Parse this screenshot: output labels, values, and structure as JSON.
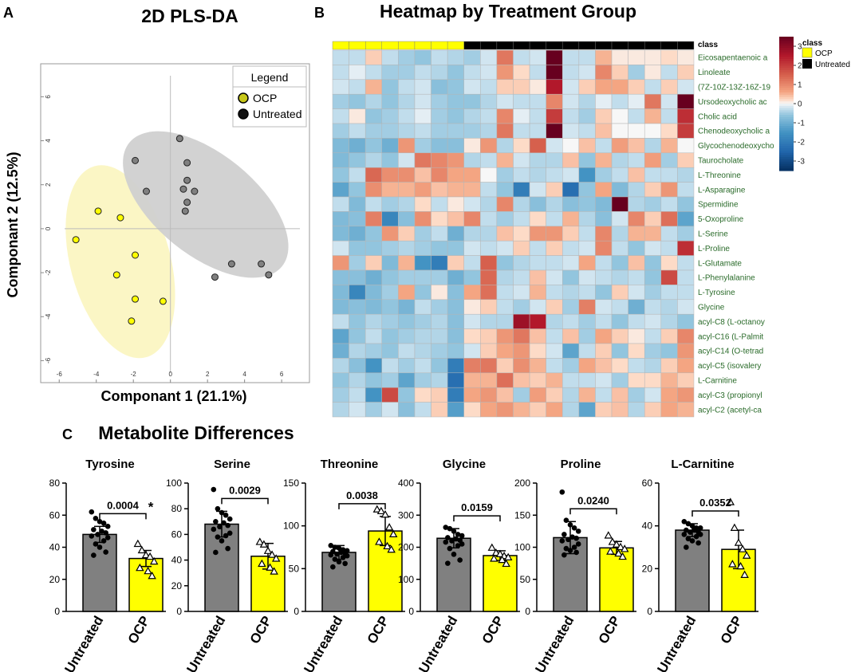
{
  "panel_labels": {
    "a": "A",
    "b": "B",
    "c": "C"
  },
  "colors": {
    "ocp": "#ffff00",
    "untreated": "#808080",
    "ellipse_ocp": "#fbf6c2",
    "ellipse_untreated": "#d0d0d0",
    "hm_low": "#053061",
    "hm_mid": "#f7f7f7",
    "hm_high": "#67001f"
  },
  "chart_data": [
    {
      "id": "pls",
      "type": "scatter",
      "title": "2D PLS-DA",
      "xlabel": "Componant 1 (21.1%)",
      "ylabel": "Componant 2 (12.5%)",
      "xlim": [
        -7,
        7.5
      ],
      "ylim": [
        -7,
        7.5
      ],
      "xticks": [
        -6,
        -4,
        -2,
        0,
        2,
        4,
        6
      ],
      "yticks": [
        -6,
        -4,
        -2,
        0,
        2,
        4,
        6
      ],
      "legend": {
        "title": "Legend",
        "position": "top-right",
        "entries": [
          "OCP",
          "Untreated"
        ]
      },
      "series": [
        {
          "name": "OCP",
          "color": "#ffff00",
          "points": [
            [
              -5.1,
              -0.5
            ],
            [
              -3.9,
              0.8
            ],
            [
              -2.7,
              0.5
            ],
            [
              -1.9,
              -1.2
            ],
            [
              -2.9,
              -2.1
            ],
            [
              -1.9,
              -3.2
            ],
            [
              -0.4,
              -3.3
            ],
            [
              -2.1,
              -4.2
            ]
          ]
        },
        {
          "name": "Untreated",
          "color": "#808080",
          "points": [
            [
              0.5,
              4.1
            ],
            [
              -1.9,
              3.1
            ],
            [
              -1.3,
              1.7
            ],
            [
              0.9,
              3
            ],
            [
              0.9,
              2.2
            ],
            [
              0.7,
              1.8
            ],
            [
              1.3,
              1.7
            ],
            [
              0.9,
              1.2
            ],
            [
              0.8,
              0.8
            ],
            [
              2.4,
              -2.2
            ],
            [
              3.3,
              -1.6
            ],
            [
              4.9,
              -1.6
            ],
            [
              5.3,
              -2.1
            ]
          ]
        }
      ],
      "ellipses": [
        {
          "group": "OCP",
          "center": [
            -2.7,
            -1.5
          ],
          "rx": 2.7,
          "ry": 4.5,
          "rotate_deg": -15
        },
        {
          "group": "Untreated",
          "center": [
            1.9,
            1.1
          ],
          "rx": 5.3,
          "ry": 2.3,
          "rotate_deg": 39
        }
      ]
    },
    {
      "id": "heatmap",
      "type": "heatmap",
      "title": "Heatmap by Treatment Group",
      "class_label": "class",
      "columns_class": [
        "OCP",
        "OCP",
        "OCP",
        "OCP",
        "OCP",
        "OCP",
        "OCP",
        "OCP",
        "Untreated",
        "Untreated",
        "Untreated",
        "Untreated",
        "Untreated",
        "Untreated",
        "Untreated",
        "Untreated",
        "Untreated",
        "Untreated",
        "Untreated",
        "Untreated",
        "Untreated",
        "Untreated"
      ],
      "rows": [
        "Eicosapentaenoic a",
        "Linoleate",
        "(7Z-10Z-13Z-16Z-19",
        "Ursodeoxycholic ac",
        "Cholic acid",
        "Chenodeoxycholic a",
        "Glycochenodeoxycho",
        "Taurocholate",
        "L-Threonine",
        "L-Asparagine",
        "Spermidine",
        "5-Oxoproline",
        "L-Serine",
        "L-Proline",
        "L-Glutamate",
        "L-Phenylalanine",
        "L-Tyrosine",
        "Glycine",
        "acyl-C8 (L-octanoy",
        "acyl-C16 (L-Palmit",
        "acyl-C14 (O-tetrad",
        "acyl-C5 (isovalery",
        "L-Carnitine",
        "acyl-C3 (propionyl",
        "acyl-C2 (acetyl-ca"
      ],
      "values": [
        [
          -0.3,
          -0.3,
          0.3,
          -0.3,
          -0.5,
          -0.6,
          -0.3,
          -0.4,
          -0.5,
          -0.2,
          1.2,
          -0.3,
          -0.2,
          3.5,
          -0.3,
          -0.3,
          0.5,
          0.1,
          0.1,
          0.1,
          0.2,
          0.1
        ],
        [
          -0.3,
          -0.1,
          -0.3,
          -0.5,
          -0.5,
          -0.3,
          -0.4,
          -0.6,
          -0.3,
          -0.2,
          0.8,
          0.2,
          -0.3,
          3.5,
          -0.3,
          -0.2,
          1,
          0.3,
          -0.5,
          0.1,
          -0.3,
          0.3
        ],
        [
          -0.2,
          -0.3,
          0.5,
          -0.6,
          -0.3,
          -0.2,
          -0.7,
          -0.6,
          -0.2,
          -0.3,
          0.3,
          0.3,
          0.1,
          2.5,
          -0.2,
          0.3,
          0.6,
          0.6,
          0.3,
          -0.3,
          0.3,
          -0.2
        ],
        [
          -0.5,
          -0.6,
          -0.4,
          -0.6,
          -0.4,
          -0.2,
          -0.5,
          -0.6,
          -0.6,
          -0.4,
          -0.2,
          -0.3,
          -0.3,
          1,
          -0.2,
          -0.4,
          -0.1,
          -0.3,
          -0.1,
          1.2,
          -0.2,
          3.5
        ],
        [
          -0.3,
          0.1,
          -0.6,
          -0.5,
          -0.3,
          -0.1,
          -0.5,
          -0.6,
          -0.4,
          -0.3,
          1,
          -0.1,
          -0.3,
          2,
          -0.3,
          -0.5,
          0.3,
          0,
          -0.3,
          0.5,
          -0.3,
          2.2
        ],
        [
          -0.5,
          -0.3,
          -0.5,
          -0.5,
          -0.4,
          -0.3,
          -0.5,
          -0.5,
          -0.5,
          -0.4,
          1.2,
          -0.3,
          -0.3,
          3.5,
          -0.2,
          -0.3,
          0.4,
          0,
          0,
          0,
          0.2,
          2
        ],
        [
          -0.8,
          -1,
          -0.6,
          -1,
          0.8,
          -0.5,
          -0.7,
          -0.7,
          0.1,
          0.8,
          -0.4,
          0.2,
          1.5,
          -0.2,
          0,
          0.4,
          -0.3,
          0.7,
          0.4,
          -0.4,
          0.5,
          0
        ],
        [
          -0.8,
          -0.6,
          -0.4,
          -0.6,
          -0.2,
          1.2,
          1,
          0.8,
          -0.4,
          -0.3,
          0.5,
          -0.2,
          -0.4,
          -0.4,
          0.4,
          -0.6,
          0.5,
          -0.4,
          -0.3,
          0.7,
          -0.5,
          0.3
        ],
        [
          -0.6,
          -0.3,
          1.4,
          0.9,
          0.9,
          0.4,
          1,
          0.6,
          0.6,
          0,
          -0.5,
          -0.3,
          -0.4,
          -0.3,
          -0.2,
          -1.5,
          -0.5,
          -0.3,
          0.4,
          -0.3,
          -0.3,
          -0.4
        ],
        [
          -1.2,
          -0.6,
          0.9,
          0.5,
          0.5,
          0.7,
          0.4,
          0.5,
          0.5,
          -0.3,
          -0.6,
          -2,
          -0.2,
          0.3,
          -2.3,
          -0.6,
          0.6,
          -0.8,
          -0.4,
          0.3,
          0.8,
          -0.3
        ],
        [
          -0.3,
          -0.8,
          -0.3,
          -0.5,
          -0.4,
          0.2,
          -0.3,
          0.1,
          -0.2,
          -0.4,
          1,
          -0.4,
          -0.7,
          -0.4,
          -0.7,
          -0.6,
          -0.8,
          3.5,
          -0.4,
          -0.5,
          -0.3,
          -0.6
        ],
        [
          -0.8,
          -0.7,
          1.1,
          -1.8,
          -0.7,
          0.9,
          0.2,
          0.4,
          1,
          -0.3,
          -0.5,
          -0.3,
          0.2,
          -0.3,
          0.5,
          -0.4,
          -0.7,
          -0.2,
          1,
          0.3,
          1.3,
          -1.2
        ],
        [
          -0.8,
          -1,
          -0.6,
          0.8,
          0.3,
          -0.5,
          -0.3,
          -1,
          -0.4,
          -0.4,
          0.4,
          0.2,
          0.8,
          0.8,
          0.3,
          -0.3,
          1,
          -0.4,
          0.5,
          0.5,
          -0.3,
          -0.5
        ],
        [
          -0.2,
          -0.6,
          -0.6,
          -0.5,
          -0.4,
          -0.5,
          -0.6,
          -0.6,
          -0.2,
          -0.3,
          -0.2,
          0.3,
          -0.3,
          0.3,
          -0.3,
          -0.2,
          1,
          -0.3,
          -0.6,
          -0.2,
          -0.3,
          2.2
        ],
        [
          0.8,
          -0.5,
          0.3,
          -0.8,
          0.5,
          -1.5,
          -2,
          0.3,
          -0.3,
          1.5,
          -0.6,
          -0.4,
          -0.3,
          -0.3,
          -0.2,
          0.6,
          -0.3,
          -0.6,
          0.4,
          -0.6,
          0.2,
          -0.3
        ],
        [
          -0.7,
          -0.7,
          -1,
          -0.6,
          -0.5,
          -0.5,
          -0.5,
          -1,
          -0.6,
          1.4,
          -0.4,
          -0.3,
          0.4,
          -0.2,
          -0.6,
          -0.2,
          -0.3,
          -0.4,
          -0.3,
          -0.6,
          1.8,
          -0.3
        ],
        [
          -0.8,
          -1.8,
          -0.8,
          -0.5,
          0.6,
          -0.6,
          0.1,
          -0.7,
          0.6,
          1.3,
          -0.3,
          -0.2,
          0.5,
          -0.3,
          -0.4,
          -0.3,
          -0.6,
          0.3,
          -0.2,
          -0.5,
          -0.3,
          -0.3
        ],
        [
          -0.8,
          -0.7,
          -0.8,
          -0.6,
          -0.9,
          -0.3,
          -0.5,
          -0.7,
          0.1,
          0.3,
          -0.3,
          -0.5,
          -0.2,
          0.3,
          -0.5,
          1.1,
          -0.2,
          -0.3,
          -1,
          -0.3,
          -0.4,
          -0.2
        ],
        [
          -0.3,
          -0.6,
          -0.4,
          -0.5,
          -0.6,
          -0.5,
          -0.4,
          -0.7,
          -0.2,
          -0.4,
          -0.4,
          2.8,
          2.5,
          -0.4,
          -0.3,
          -0.5,
          -0.3,
          -0.6,
          -0.3,
          -0.2,
          -0.4,
          -0.6
        ],
        [
          -1.2,
          -0.6,
          -0.3,
          -0.6,
          -0.5,
          -0.4,
          -0.4,
          -0.7,
          0.2,
          0.3,
          0.8,
          1.2,
          0.4,
          -0.3,
          0.4,
          -0.5,
          0.6,
          0.3,
          0.1,
          -0.3,
          0.3,
          1
        ],
        [
          -1,
          -0.4,
          -0.5,
          -0.6,
          -0.3,
          -0.4,
          -0.5,
          -0.6,
          -0.2,
          0.3,
          0.6,
          0.8,
          0.2,
          -0.2,
          -1.2,
          -0.3,
          0.3,
          -0.6,
          0.2,
          -0.5,
          -0.6,
          0.8
        ],
        [
          -0.4,
          -0.7,
          -1.5,
          -0.3,
          -0.5,
          -0.3,
          -0.6,
          -2,
          1.1,
          1.2,
          0.3,
          0.9,
          0.5,
          -0.3,
          -0.5,
          0.6,
          0.4,
          0.2,
          -0.3,
          -0.4,
          0.3,
          0.6
        ],
        [
          -0.6,
          -0.4,
          -0.6,
          -0.5,
          -1.2,
          -0.5,
          -0.4,
          -2.3,
          0.5,
          0.5,
          1.3,
          0.4,
          0.3,
          0.5,
          -0.3,
          -0.3,
          -0.2,
          -0.5,
          0.2,
          0.2,
          0.5,
          0.3
        ],
        [
          -0.5,
          -0.3,
          -1.5,
          1.8,
          -0.6,
          0.2,
          0.3,
          -2,
          0.6,
          0.8,
          0.4,
          -0.5,
          0.7,
          0.3,
          -0.4,
          0.5,
          -0.3,
          0.4,
          -0.5,
          -0.2,
          0.6,
          0.8
        ],
        [
          -0.4,
          -0.2,
          -0.5,
          -0.2,
          -0.7,
          -0.3,
          0.3,
          -1.3,
          0.2,
          0.6,
          0.8,
          0.5,
          0.3,
          0.6,
          -0.4,
          -1.2,
          0.3,
          0.4,
          -0.4,
          0.3,
          0.6,
          0.5
        ]
      ],
      "scale": {
        "min": -3.5,
        "max": 3.5,
        "ticks": [
          3,
          2,
          1,
          0,
          -1,
          -2,
          -3
        ]
      },
      "legend": {
        "title": "class",
        "position": "top-right",
        "entries": [
          "OCP",
          "Untreated"
        ]
      }
    },
    {
      "id": "bars",
      "type": "bar",
      "title": "Metabolite Differences",
      "categories": [
        "Untreated",
        "OCP"
      ],
      "panels": [
        {
          "name": "Tyrosine",
          "ymax": 80,
          "yticks": [
            0,
            20,
            40,
            60,
            80
          ],
          "p": "0.0004",
          "sig": "*",
          "means": [
            48,
            33
          ],
          "sd": [
            5,
            5
          ],
          "untreated": [
            62,
            58,
            56,
            55,
            53,
            51,
            50,
            49,
            48,
            47,
            46,
            44,
            42,
            40,
            37,
            35
          ],
          "ocp": [
            42,
            38,
            35,
            34,
            31,
            27,
            25,
            22
          ]
        },
        {
          "name": "Serine",
          "ymax": 100,
          "yticks": [
            0,
            20,
            40,
            60,
            80,
            100
          ],
          "p": "0.0029",
          "sig": "",
          "means": [
            68,
            43
          ],
          "sd": [
            10,
            10
          ],
          "untreated": [
            95,
            80,
            77,
            75,
            72,
            70,
            69,
            67,
            66,
            64,
            61,
            59,
            58,
            55,
            49,
            46
          ],
          "ocp": [
            54,
            52,
            47,
            44,
            41,
            37,
            34,
            31
          ]
        },
        {
          "name": "Threonine",
          "ymax": 150,
          "yticks": [
            0,
            50,
            100,
            150
          ],
          "p": "0.0038",
          "sig": "",
          "means": [
            69,
            94
          ],
          "sd": [
            8,
            17
          ],
          "untreated": [
            77,
            75,
            74,
            72,
            71,
            70,
            69,
            68,
            67,
            66,
            65,
            63,
            61,
            58,
            56,
            52
          ],
          "ocp": [
            119,
            117,
            113,
            98,
            90,
            81,
            76,
            72
          ]
        },
        {
          "name": "Glycine",
          "ymax": 400,
          "yticks": [
            0,
            100,
            200,
            300,
            400
          ],
          "p": "0.0159",
          "sig": "",
          "means": [
            228,
            174
          ],
          "sd": [
            30,
            15
          ],
          "untreated": [
            262,
            258,
            250,
            240,
            236,
            230,
            226,
            222,
            220,
            216,
            210,
            205,
            196,
            178,
            160,
            150
          ],
          "ocp": [
            198,
            182,
            178,
            172,
            168,
            164,
            160,
            148
          ]
        },
        {
          "name": "Proline",
          "ymax": 200,
          "yticks": [
            0,
            50,
            100,
            150,
            200
          ],
          "p": "0.0240",
          "sig": "",
          "means": [
            115,
            99
          ],
          "sd": [
            25,
            10
          ],
          "untreated": [
            186,
            142,
            135,
            130,
            125,
            120,
            116,
            114,
            112,
            110,
            105,
            100,
            98,
            95,
            92,
            88
          ],
          "ocp": [
            118,
            108,
            104,
            100,
            97,
            93,
            90,
            85
          ]
        },
        {
          "name": "L-Carnitine",
          "ymax": 60,
          "yticks": [
            0,
            20,
            40,
            60
          ],
          "p": "0.0352",
          "sig": "",
          "means": [
            38,
            29
          ],
          "sd": [
            3,
            9
          ],
          "untreated": [
            42,
            41,
            40,
            39,
            39,
            38,
            38,
            37,
            37,
            36,
            36,
            35,
            34,
            33,
            32,
            30
          ],
          "ocp": [
            51,
            39,
            32,
            29,
            26,
            22,
            21,
            17
          ]
        }
      ]
    }
  ]
}
